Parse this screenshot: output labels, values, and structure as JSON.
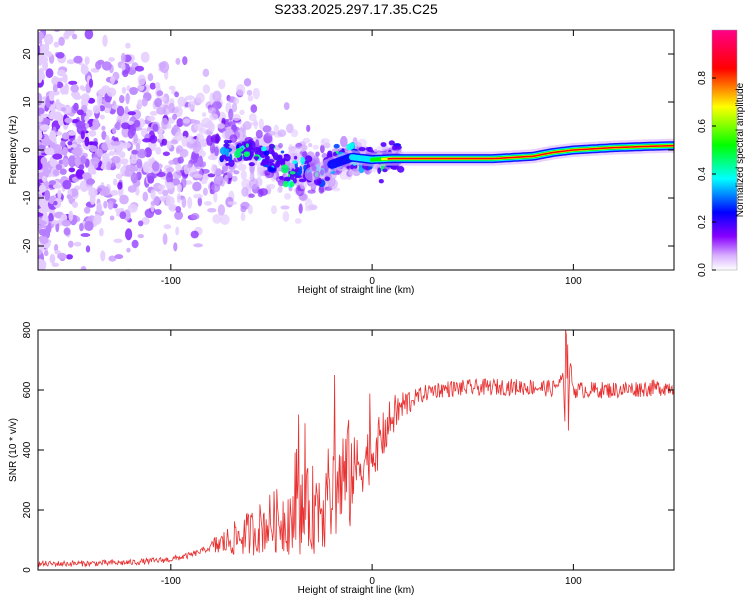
{
  "title": "S233.2025.297.17.35.C25",
  "chart_data": [
    {
      "type": "heatmap",
      "title": "S233.2025.297.17.35.C25",
      "xlabel": "Height of straight line (km)",
      "ylabel": "Frequency (Hz)",
      "xlim": [
        -166,
        150
      ],
      "ylim": [
        -25,
        25
      ],
      "xticks": [
        -100,
        0,
        100
      ],
      "yticks": [
        -20,
        -10,
        0,
        10,
        20
      ],
      "colorbar": {
        "label": "Normalized spectral amplitude",
        "range": [
          0,
          1
        ],
        "ticks": [
          "0.0",
          "0.2",
          "0.4",
          "0.6",
          "0.8"
        ],
        "stops": [
          "#ffffff",
          "#8800ff",
          "#0000ff",
          "#00ffff",
          "#00ff00",
          "#ffff00",
          "#ff0000",
          "#ff00aa"
        ]
      },
      "signal_trace": {
        "x": [
          -65,
          -50,
          -40,
          -30,
          -20,
          -10,
          0,
          10,
          30,
          60,
          80,
          90,
          100,
          120,
          140,
          150
        ],
        "y": [
          0,
          -2,
          -4,
          -5,
          -3,
          -1.5,
          -2,
          -1.8,
          -1.8,
          -1.8,
          -1.3,
          -0.5,
          0,
          0.5,
          0.8,
          0.9
        ]
      }
    },
    {
      "type": "line",
      "xlabel": "Height of straight line (km)",
      "ylabel": "SNR (10 * v/v)",
      "xlim": [
        -166,
        150
      ],
      "ylim": [
        0,
        800
      ],
      "xticks": [
        -100,
        0,
        100
      ],
      "yticks": [
        0,
        200,
        400,
        600,
        800
      ],
      "series": [
        {
          "name": "SNR",
          "color": "#e83030",
          "x": [
            -166,
            -140,
            -120,
            -100,
            -90,
            -80,
            -70,
            -60,
            -50,
            -40,
            -30,
            -20,
            -15,
            -10,
            -5,
            0,
            5,
            10,
            15,
            20,
            25,
            30,
            40,
            60,
            80,
            90,
            95,
            96,
            100,
            120,
            150
          ],
          "y": [
            20,
            22,
            25,
            35,
            50,
            75,
            100,
            125,
            160,
            175,
            200,
            250,
            300,
            320,
            360,
            390,
            440,
            510,
            545,
            570,
            585,
            600,
            605,
            610,
            610,
            605,
            640,
            800,
            600,
            600,
            610
          ]
        }
      ]
    }
  ]
}
